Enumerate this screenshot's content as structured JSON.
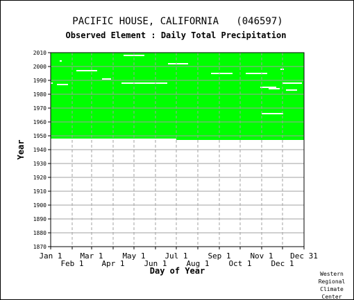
{
  "chart_title": "PACIFIC HOUSE, CALIFORNIA   (046597)",
  "chart_subtitle": "Observed Element : Daily Total Precipitation",
  "credit": [
    "Western",
    "Regional",
    "Climate",
    "Center"
  ],
  "colors": {
    "coverage": "#00ff00",
    "gap": "#ffffff",
    "grid": "#a0a0a0",
    "axis": "#000000"
  },
  "chart_data": {
    "type": "heatmap",
    "description_of_marks": "green = days with observed data",
    "xlabel": "Day of Year",
    "ylabel": "Year",
    "xlim": [
      1,
      365
    ],
    "ylim": [
      1870,
      2010
    ],
    "y_ticks": [
      1870,
      1880,
      1890,
      1900,
      1910,
      1920,
      1930,
      1940,
      1950,
      1960,
      1970,
      1980,
      1990,
      2000,
      2010
    ],
    "x_ticks_upper": [
      {
        "label": "Jan 1",
        "day": 1
      },
      {
        "label": "Mar 1",
        "day": 60
      },
      {
        "label": "May 1",
        "day": 121
      },
      {
        "label": "Jul 1",
        "day": 182
      },
      {
        "label": "Sep 1",
        "day": 244
      },
      {
        "label": "Nov 1",
        "day": 305
      },
      {
        "label": "Dec 31",
        "day": 365
      }
    ],
    "x_ticks_lower": [
      {
        "label": "Feb 1",
        "day": 32
      },
      {
        "label": "Apr 1",
        "day": 91
      },
      {
        "label": "Jun 1",
        "day": 152
      },
      {
        "label": "Aug 1",
        "day": 213
      },
      {
        "label": "Oct 1",
        "day": 274
      },
      {
        "label": "Dec 1",
        "day": 335
      }
    ],
    "coverage": [
      {
        "day_start": 1,
        "day_end": 181,
        "year_start": 1948,
        "year_end": 2010
      },
      {
        "day_start": 182,
        "day_end": 365,
        "year_start": 1947,
        "year_end": 2010
      }
    ],
    "gaps": [
      {
        "day_start": 38,
        "day_end": 67,
        "year": 1997
      },
      {
        "day_start": 75,
        "day_end": 87,
        "year": 1991
      },
      {
        "day_start": 106,
        "day_end": 135,
        "year": 2008
      },
      {
        "day_start": 103,
        "day_end": 168,
        "year": 1988
      },
      {
        "day_start": 170,
        "day_end": 198,
        "year": 2002
      },
      {
        "day_start": 232,
        "day_end": 262,
        "year": 1995
      },
      {
        "day_start": 282,
        "day_end": 312,
        "year": 1995
      },
      {
        "day_start": 305,
        "day_end": 335,
        "year": 1966
      },
      {
        "day_start": 303,
        "day_end": 325,
        "year": 1985
      },
      {
        "day_start": 335,
        "day_end": 362,
        "year": 1988
      },
      {
        "day_start": 340,
        "day_end": 355,
        "year": 1983
      },
      {
        "day_start": 1,
        "day_end": 3,
        "year": 1988
      },
      {
        "day_start": 10,
        "day_end": 25,
        "year": 1987
      },
      {
        "day_start": 14,
        "day_end": 16,
        "year": 2004
      },
      {
        "day_start": 332,
        "day_end": 336,
        "year": 1998
      },
      {
        "day_start": 315,
        "day_end": 330,
        "year": 1984
      }
    ]
  }
}
